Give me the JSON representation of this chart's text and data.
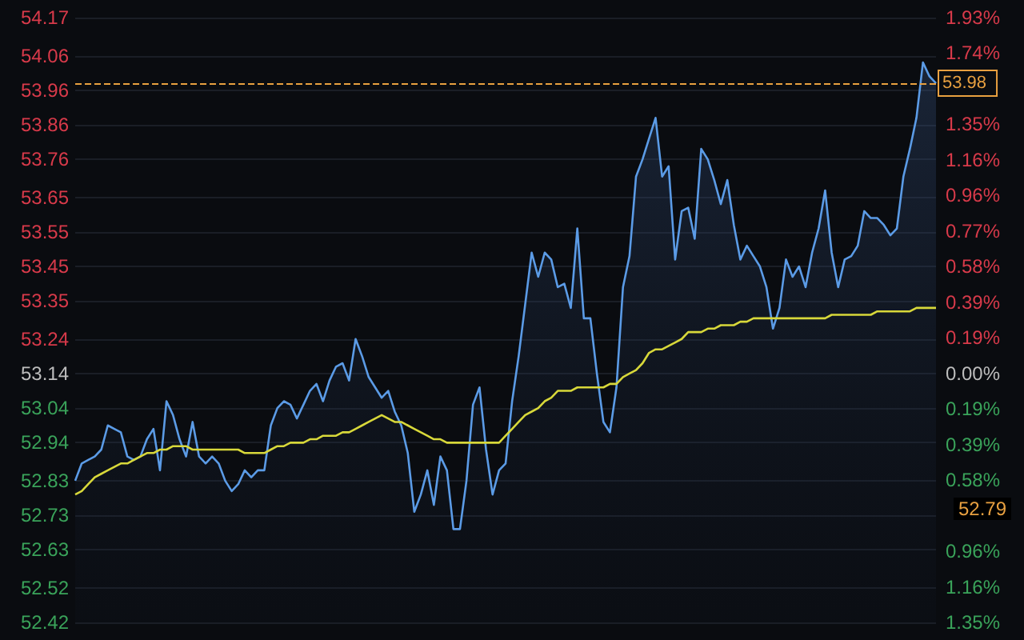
{
  "chart_data": {
    "type": "area",
    "categories": [
      null,
      null,
      null,
      null,
      null,
      null,
      null,
      null,
      null,
      null,
      null,
      null,
      null,
      null,
      null,
      null,
      null,
      null,
      null,
      null,
      null,
      null,
      null,
      null,
      null,
      null,
      null,
      null,
      null,
      null,
      null,
      null,
      null,
      null,
      null,
      null,
      null,
      null,
      null,
      null,
      null,
      null,
      null,
      null,
      null,
      null,
      null,
      null,
      null,
      null,
      null,
      null,
      null,
      null,
      null,
      null,
      null,
      null,
      null,
      null,
      null,
      null,
      null,
      null,
      null,
      null,
      null,
      null,
      null,
      null,
      null,
      null,
      null,
      null,
      null,
      null,
      null,
      null,
      null,
      null,
      null,
      null,
      null,
      null,
      null,
      null,
      null,
      null,
      null,
      null,
      null,
      null,
      null,
      null,
      null,
      null,
      null,
      null,
      null,
      null,
      null,
      null,
      null,
      null,
      null,
      null,
      null,
      null,
      null,
      null,
      null,
      null,
      null,
      null,
      null,
      null,
      null,
      null,
      null,
      null,
      null,
      null,
      null,
      null,
      null,
      null,
      null,
      null,
      null,
      null,
      null,
      null,
      null
    ],
    "series": [
      {
        "color": "#5b9be6",
        "values": [
          52.83,
          52.88,
          52.89,
          52.9,
          52.92,
          52.99,
          52.98,
          52.97,
          52.9,
          52.89,
          52.9,
          52.95,
          52.98,
          52.86,
          53.06,
          53.02,
          52.95,
          52.9,
          53.0,
          52.9,
          52.88,
          52.9,
          52.88,
          52.83,
          52.8,
          52.82,
          52.86,
          52.84,
          52.86,
          52.86,
          52.99,
          53.04,
          53.06,
          53.05,
          53.01,
          53.05,
          53.09,
          53.11,
          53.06,
          53.12,
          53.16,
          53.17,
          53.12,
          53.24,
          53.19,
          53.13,
          53.1,
          53.07,
          53.09,
          53.03,
          52.99,
          52.91,
          52.74,
          52.79,
          52.86,
          52.76,
          52.9,
          52.86,
          52.69,
          52.69,
          52.83,
          53.05,
          53.1,
          52.92,
          52.79,
          52.86,
          52.88,
          53.06,
          53.19,
          53.34,
          53.49,
          53.42,
          53.49,
          53.47,
          53.39,
          53.4,
          53.33,
          53.56,
          53.3,
          53.3,
          53.14,
          53.0,
          52.97,
          53.1,
          53.39,
          53.48,
          53.71,
          53.76,
          53.82,
          53.88,
          53.71,
          53.74,
          53.47,
          53.61,
          53.62,
          53.53,
          53.79,
          53.76,
          53.7,
          53.63,
          53.7,
          53.57,
          53.47,
          53.51,
          53.48,
          53.45,
          53.39,
          53.27,
          53.33,
          53.47,
          53.42,
          53.45,
          53.39,
          53.49,
          53.56,
          53.67,
          53.49,
          53.39,
          53.47,
          53.48,
          53.51,
          53.61,
          53.59,
          53.59,
          53.57,
          53.54,
          53.56,
          53.71,
          53.79,
          53.88,
          54.04,
          54.0,
          53.98
        ]
      },
      {
        "type": "line",
        "color": "#d8d83a",
        "values": [
          52.79,
          52.8,
          52.82,
          52.84,
          52.85,
          52.86,
          52.87,
          52.88,
          52.88,
          52.89,
          52.9,
          52.91,
          52.91,
          52.92,
          52.92,
          52.93,
          52.93,
          52.93,
          52.92,
          52.92,
          52.92,
          52.92,
          52.92,
          52.92,
          52.92,
          52.92,
          52.91,
          52.91,
          52.91,
          52.91,
          52.92,
          52.93,
          52.93,
          52.94,
          52.94,
          52.94,
          52.95,
          52.95,
          52.96,
          52.96,
          52.96,
          52.97,
          52.97,
          52.98,
          52.99,
          53.0,
          53.01,
          53.02,
          53.01,
          53.0,
          53.0,
          52.99,
          52.98,
          52.97,
          52.96,
          52.95,
          52.95,
          52.94,
          52.94,
          52.94,
          52.94,
          52.94,
          52.94,
          52.94,
          52.94,
          52.94,
          52.96,
          52.98,
          53.0,
          53.02,
          53.03,
          53.04,
          53.06,
          53.07,
          53.09,
          53.09,
          53.09,
          53.1,
          53.1,
          53.1,
          53.1,
          53.1,
          53.11,
          53.11,
          53.13,
          53.14,
          53.15,
          53.17,
          53.2,
          53.21,
          53.21,
          53.22,
          53.23,
          53.24,
          53.26,
          53.26,
          53.26,
          53.27,
          53.27,
          53.28,
          53.28,
          53.28,
          53.29,
          53.29,
          53.3,
          53.3,
          53.3,
          53.3,
          53.3,
          53.3,
          53.3,
          53.3,
          53.3,
          53.3,
          53.3,
          53.3,
          53.31,
          53.31,
          53.31,
          53.31,
          53.31,
          53.31,
          53.31,
          53.32,
          53.32,
          53.32,
          53.32,
          53.32,
          53.32,
          53.33,
          53.33,
          53.33,
          53.33
        ]
      }
    ],
    "ylim": [
      52.42,
      54.17
    ],
    "yticks": [
      52.42,
      52.52,
      52.63,
      52.73,
      52.83,
      52.94,
      53.04,
      53.14,
      53.24,
      53.35,
      53.45,
      53.55,
      53.65,
      53.76,
      53.86,
      53.96,
      54.06,
      54.17
    ],
    "y2lim": [
      -1.351,
      1.93
    ],
    "y2ticks": [
      {
        "value": -1.351,
        "label": "1.35%"
      },
      {
        "value": -1.158,
        "label": "1.16%"
      },
      {
        "value": -0.965,
        "label": "0.96%"
      },
      {
        "value": -0.772,
        "label": null
      },
      {
        "value": -0.579,
        "label": "0.58%"
      },
      {
        "value": -0.386,
        "label": "0.39%"
      },
      {
        "value": -0.193,
        "label": "0.19%"
      },
      {
        "value": 0,
        "label": "0.00%"
      },
      {
        "value": 0.193,
        "label": "0.19%"
      },
      {
        "value": 0.386,
        "label": "0.39%"
      },
      {
        "value": 0.579,
        "label": "0.58%"
      },
      {
        "value": 0.772,
        "label": "0.77%"
      },
      {
        "value": 0.965,
        "label": "0.96%"
      },
      {
        "value": 1.158,
        "label": "1.16%"
      },
      {
        "value": 1.351,
        "label": "1.35%"
      },
      {
        "value": 1.544,
        "label": null
      },
      {
        "value": 1.737,
        "label": "1.74%"
      },
      {
        "value": 1.93,
        "label": "1.93%"
      }
    ],
    "ref_lines": [
      {
        "axis": "y",
        "value": 53.98,
        "label": "53.98",
        "color": "#e8a040",
        "line_style": "dashed"
      }
    ],
    "annotations": [
      "52.79"
    ],
    "grid": "y",
    "tick_labels": "y"
  }
}
